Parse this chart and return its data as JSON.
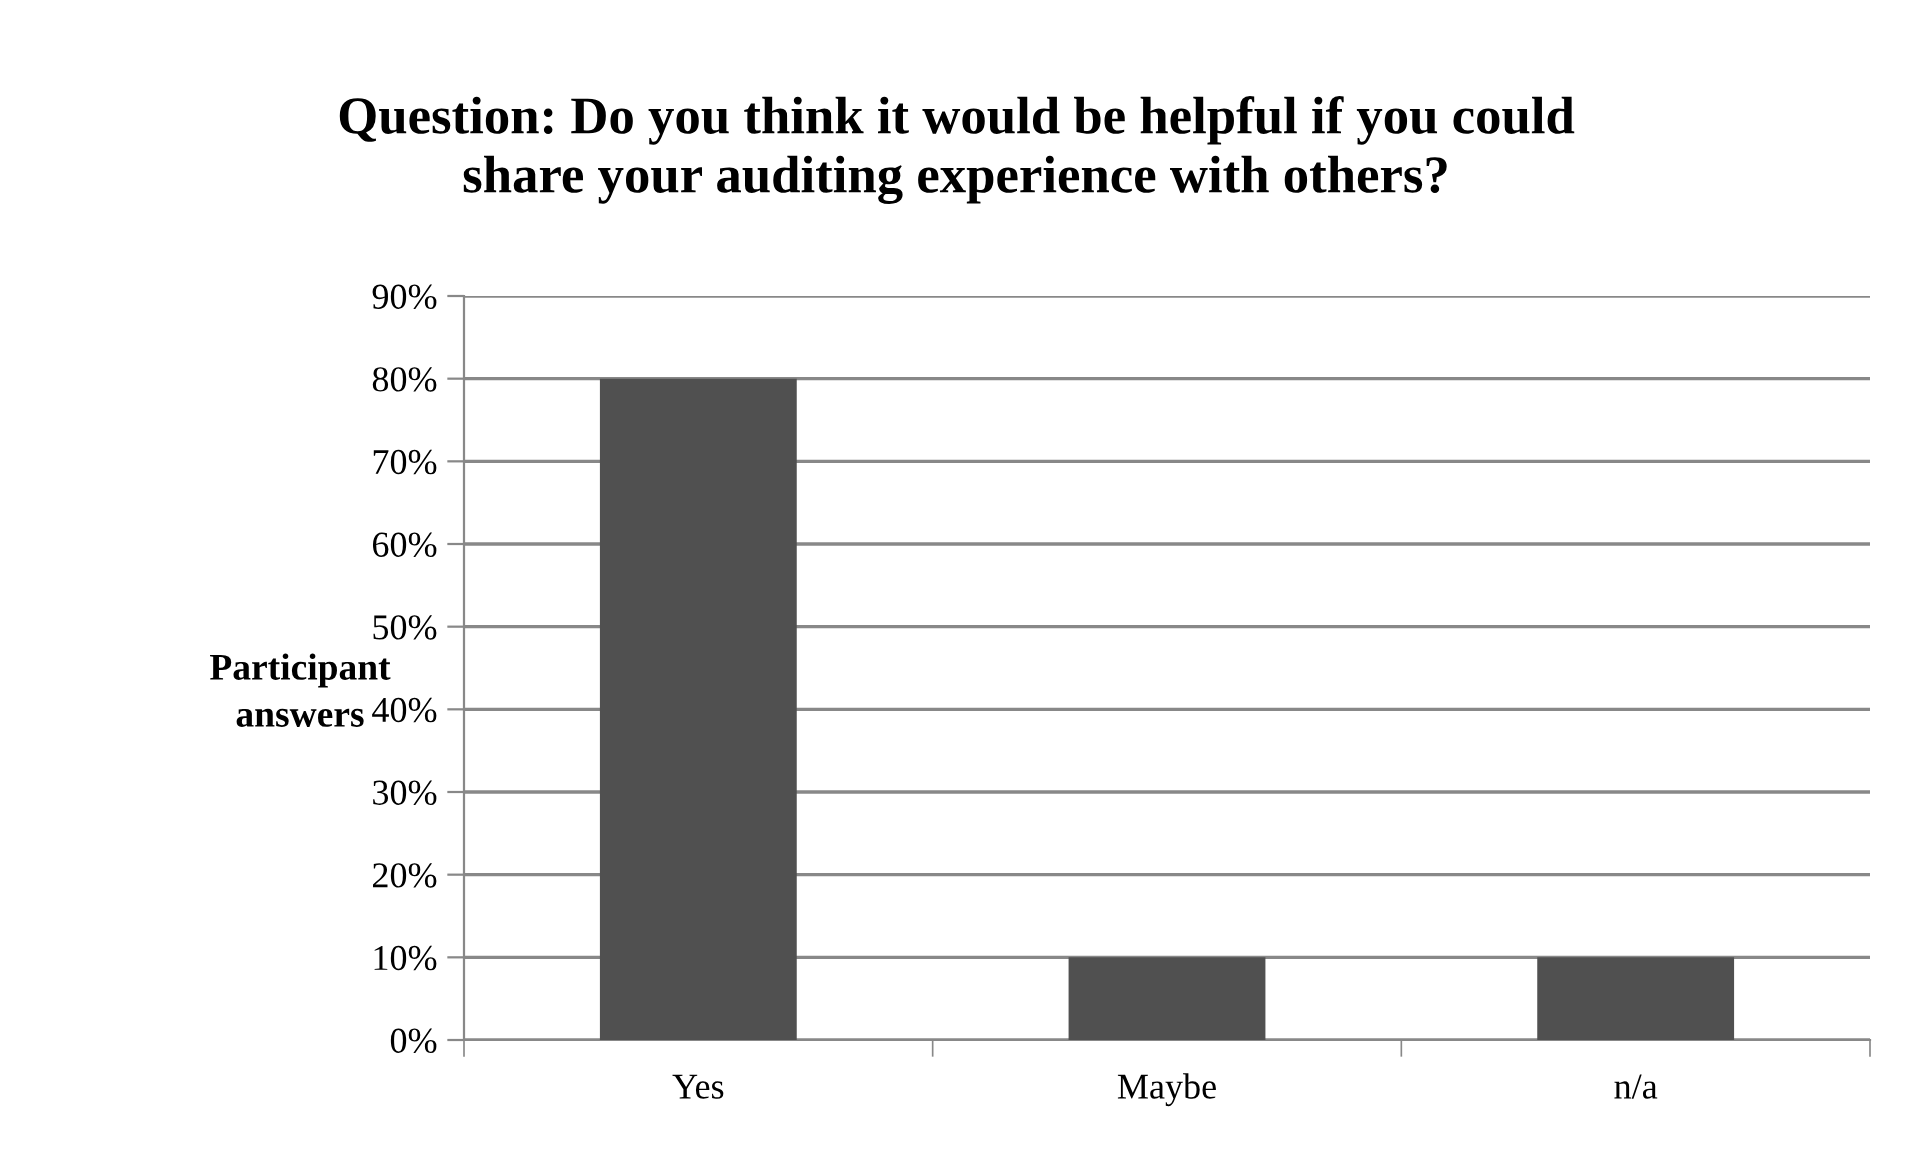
{
  "chart_data": {
    "type": "bar",
    "title": "Question: Do you think it would be helpful if you could\nshare your auditing experience with others?",
    "ylabel": "Participant\nanswers",
    "categories": [
      "Yes",
      "Maybe",
      "n/a"
    ],
    "values": [
      80,
      10,
      10
    ],
    "color": "#505050",
    "ylim": [
      0,
      90
    ],
    "yticks": [
      {
        "value": 0,
        "label": "0%"
      },
      {
        "value": 10,
        "label": "10%"
      },
      {
        "value": 20,
        "label": "20%"
      },
      {
        "value": 30,
        "label": "30%"
      },
      {
        "value": 40,
        "label": "40%"
      },
      {
        "value": 50,
        "label": "50%"
      },
      {
        "value": 60,
        "label": "60%"
      },
      {
        "value": 70,
        "label": "70%"
      },
      {
        "value": 80,
        "label": "80%"
      },
      {
        "value": 90,
        "label": "90%"
      }
    ],
    "grid": "y",
    "legend": false
  }
}
